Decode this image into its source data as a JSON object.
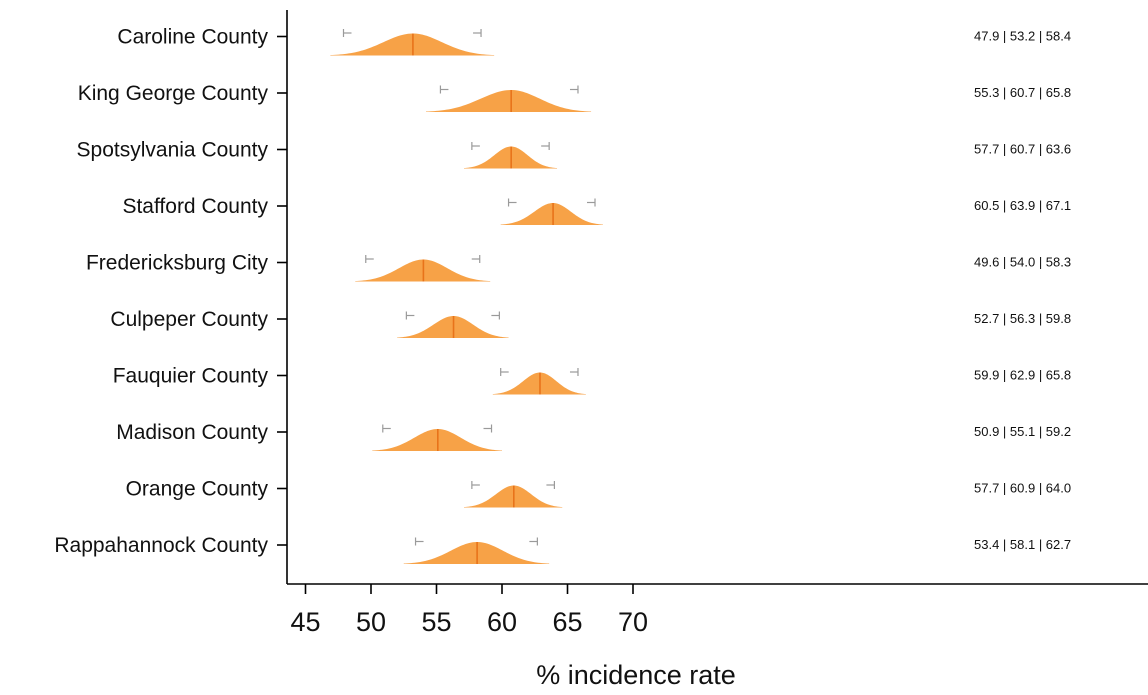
{
  "chart_data": {
    "type": "ridgeline",
    "x_label": "% incidence rate",
    "x_ticks": [
      45,
      50,
      55,
      60,
      65,
      70
    ],
    "xlim": [
      44.2,
      76.4
    ],
    "grid": false,
    "colors": {
      "fill": "#f7a247",
      "median_line": "#e8731a",
      "interval_bar": "#9a9a9a",
      "axis": "#000000"
    },
    "rows": [
      {
        "name": "Caroline County",
        "low": 47.9,
        "median": 53.2,
        "high": 58.4,
        "label": "47.9 | 53.2 | 58.4",
        "dist_min": 46.9,
        "dist_max": 59.4
      },
      {
        "name": "King George County",
        "low": 55.3,
        "median": 60.7,
        "high": 65.8,
        "label": "55.3 | 60.7 | 65.8",
        "dist_min": 54.2,
        "dist_max": 66.8
      },
      {
        "name": "Spotsylvania County",
        "low": 57.7,
        "median": 60.7,
        "high": 63.6,
        "label": "57.7 | 60.7 | 63.6",
        "dist_min": 57.1,
        "dist_max": 64.2
      },
      {
        "name": "Stafford County",
        "low": 60.5,
        "median": 63.9,
        "high": 67.1,
        "label": "60.5 | 63.9 | 67.1",
        "dist_min": 59.9,
        "dist_max": 67.7
      },
      {
        "name": "Fredericksburg City",
        "low": 49.6,
        "median": 54.0,
        "high": 58.3,
        "label": "49.6 | 54.0 | 58.3",
        "dist_min": 48.8,
        "dist_max": 59.1
      },
      {
        "name": "Culpeper County",
        "low": 52.7,
        "median": 56.3,
        "high": 59.8,
        "label": "52.7 | 56.3 | 59.8",
        "dist_min": 52.0,
        "dist_max": 60.5
      },
      {
        "name": "Fauquier County",
        "low": 59.9,
        "median": 62.9,
        "high": 65.8,
        "label": "59.9 | 62.9 | 65.8",
        "dist_min": 59.3,
        "dist_max": 66.4
      },
      {
        "name": "Madison County",
        "low": 50.9,
        "median": 55.1,
        "high": 59.2,
        "label": "50.9 | 55.1 | 59.2",
        "dist_min": 50.1,
        "dist_max": 60.0
      },
      {
        "name": "Orange County",
        "low": 57.7,
        "median": 60.9,
        "high": 64.0,
        "label": "57.7 | 60.9 | 64.0",
        "dist_min": 57.1,
        "dist_max": 64.6
      },
      {
        "name": "Rappahannock County",
        "low": 53.4,
        "median": 58.1,
        "high": 62.7,
        "label": "53.4 | 58.1 | 62.7",
        "dist_min": 52.5,
        "dist_max": 63.6
      }
    ]
  }
}
